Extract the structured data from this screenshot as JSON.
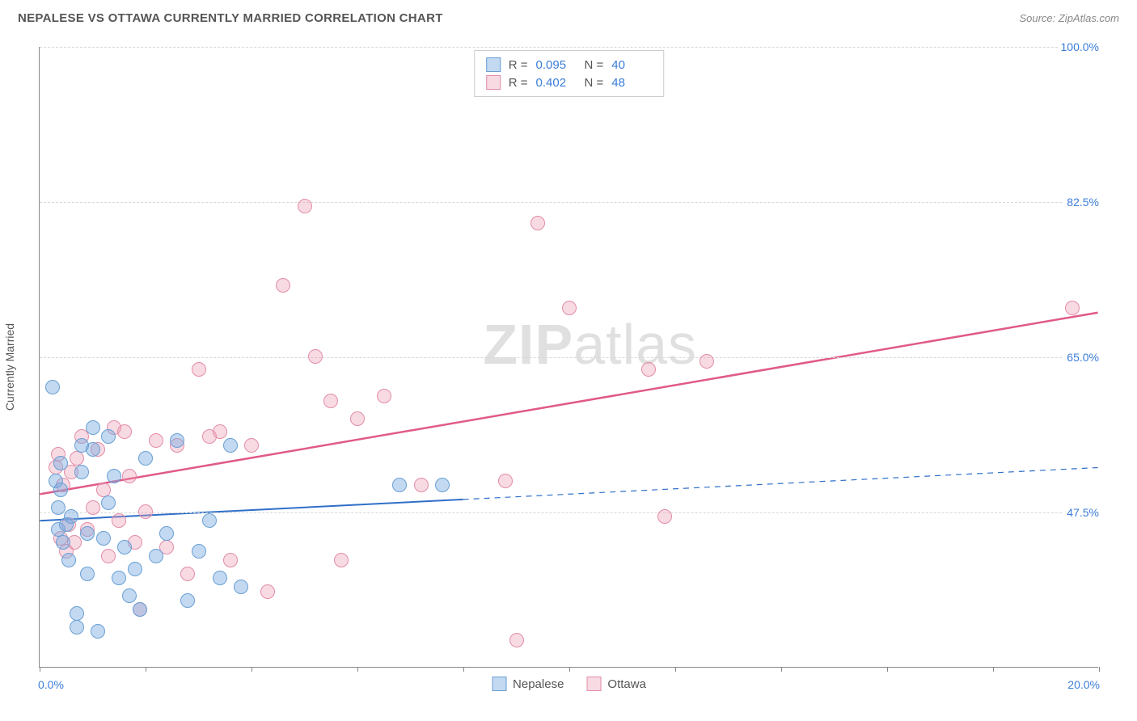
{
  "header": {
    "title": "NEPALESE VS OTTAWA CURRENTLY MARRIED CORRELATION CHART",
    "source": "Source: ZipAtlas.com"
  },
  "watermark": {
    "part1": "ZIP",
    "part2": "atlas"
  },
  "chart": {
    "type": "scatter",
    "y_axis_title": "Currently Married",
    "xlim": [
      0,
      20
    ],
    "ylim": [
      30,
      100
    ],
    "x_ticks": [
      0,
      2,
      4,
      6,
      8,
      10,
      12,
      14,
      16,
      18,
      20
    ],
    "x_tick_labels_shown": {
      "0": "0.0%",
      "20": "20.0%"
    },
    "y_gridlines": [
      47.5,
      65.0,
      82.5,
      100.0
    ],
    "y_tick_labels": [
      "47.5%",
      "65.0%",
      "82.5%",
      "100.0%"
    ],
    "background_color": "#ffffff",
    "grid_color": "#d8d8d8",
    "axis_color": "#888888",
    "axis_label_color": "#3b7dd8",
    "marker_radius": 9,
    "series": [
      {
        "name": "Nepalese",
        "color_fill": "rgba(120,170,225,0.45)",
        "color_stroke": "#6a9fd4",
        "r": 0.095,
        "n": 40,
        "trend": {
          "x1": 0,
          "y1": 46.5,
          "x2": 20,
          "y2": 52.5,
          "solid_until_x": 8.0,
          "color": "#2f6fc9",
          "width": 2
        },
        "points": [
          [
            0.25,
            61.5
          ],
          [
            0.3,
            51.0
          ],
          [
            0.35,
            48.0
          ],
          [
            0.35,
            45.5
          ],
          [
            0.4,
            53.0
          ],
          [
            0.4,
            50.0
          ],
          [
            0.45,
            44.0
          ],
          [
            0.5,
            46.0
          ],
          [
            0.55,
            42.0
          ],
          [
            0.6,
            47.0
          ],
          [
            0.7,
            34.5
          ],
          [
            0.7,
            36.0
          ],
          [
            0.8,
            55.0
          ],
          [
            0.8,
            52.0
          ],
          [
            0.9,
            45.0
          ],
          [
            0.9,
            40.5
          ],
          [
            1.0,
            54.5
          ],
          [
            1.0,
            57.0
          ],
          [
            1.1,
            34.0
          ],
          [
            1.2,
            44.5
          ],
          [
            1.3,
            56.0
          ],
          [
            1.3,
            48.5
          ],
          [
            1.4,
            51.5
          ],
          [
            1.5,
            40.0
          ],
          [
            1.6,
            43.5
          ],
          [
            1.7,
            38.0
          ],
          [
            1.8,
            41.0
          ],
          [
            1.9,
            36.5
          ],
          [
            2.0,
            53.5
          ],
          [
            2.2,
            42.5
          ],
          [
            2.4,
            45.0
          ],
          [
            2.6,
            55.5
          ],
          [
            2.8,
            37.5
          ],
          [
            3.0,
            43.0
          ],
          [
            3.2,
            46.5
          ],
          [
            3.4,
            40.0
          ],
          [
            3.6,
            55.0
          ],
          [
            3.8,
            39.0
          ],
          [
            6.8,
            50.5
          ],
          [
            7.6,
            50.5
          ]
        ]
      },
      {
        "name": "Ottawa",
        "color_fill": "rgba(235,150,175,0.35)",
        "color_stroke": "#e28da6",
        "r": 0.402,
        "n": 48,
        "trend": {
          "x1": 0,
          "y1": 49.5,
          "x2": 20,
          "y2": 70.0,
          "solid_until_x": 20,
          "color": "#e05a88",
          "width": 2.5
        },
        "points": [
          [
            0.3,
            52.5
          ],
          [
            0.35,
            54.0
          ],
          [
            0.4,
            44.5
          ],
          [
            0.45,
            50.5
          ],
          [
            0.5,
            43.0
          ],
          [
            0.55,
            46.0
          ],
          [
            0.6,
            52.0
          ],
          [
            0.65,
            44.0
          ],
          [
            0.7,
            53.5
          ],
          [
            0.8,
            56.0
          ],
          [
            0.9,
            45.5
          ],
          [
            1.0,
            48.0
          ],
          [
            1.1,
            54.5
          ],
          [
            1.2,
            50.0
          ],
          [
            1.3,
            42.5
          ],
          [
            1.4,
            57.0
          ],
          [
            1.5,
            46.5
          ],
          [
            1.6,
            56.5
          ],
          [
            1.7,
            51.5
          ],
          [
            1.8,
            44.0
          ],
          [
            1.9,
            36.5
          ],
          [
            2.0,
            47.5
          ],
          [
            2.2,
            55.5
          ],
          [
            2.4,
            43.5
          ],
          [
            2.6,
            55.0
          ],
          [
            2.8,
            40.5
          ],
          [
            3.0,
            63.5
          ],
          [
            3.2,
            56.0
          ],
          [
            3.4,
            56.5
          ],
          [
            3.6,
            42.0
          ],
          [
            4.0,
            55.0
          ],
          [
            4.3,
            38.5
          ],
          [
            4.6,
            73.0
          ],
          [
            5.0,
            82.0
          ],
          [
            5.2,
            65.0
          ],
          [
            5.5,
            60.0
          ],
          [
            5.7,
            42.0
          ],
          [
            6.0,
            58.0
          ],
          [
            6.5,
            60.5
          ],
          [
            7.2,
            50.5
          ],
          [
            9.0,
            33.0
          ],
          [
            9.4,
            80.0
          ],
          [
            10.0,
            70.5
          ],
          [
            11.5,
            63.5
          ],
          [
            11.8,
            47.0
          ],
          [
            12.6,
            64.5
          ],
          [
            19.5,
            70.5
          ],
          [
            8.8,
            51.0
          ]
        ]
      }
    ]
  },
  "legend_stats": {
    "rows": [
      {
        "swatch_fill": "rgba(120,170,225,0.45)",
        "swatch_stroke": "#6a9fd4",
        "r": "0.095",
        "n": "40"
      },
      {
        "swatch_fill": "rgba(235,150,175,0.35)",
        "swatch_stroke": "#e28da6",
        "r": "0.402",
        "n": "48"
      }
    ]
  },
  "bottom_legend": {
    "items": [
      {
        "swatch_fill": "rgba(120,170,225,0.45)",
        "swatch_stroke": "#6a9fd4",
        "label": "Nepalese"
      },
      {
        "swatch_fill": "rgba(235,150,175,0.35)",
        "swatch_stroke": "#e28da6",
        "label": "Ottawa"
      }
    ]
  }
}
